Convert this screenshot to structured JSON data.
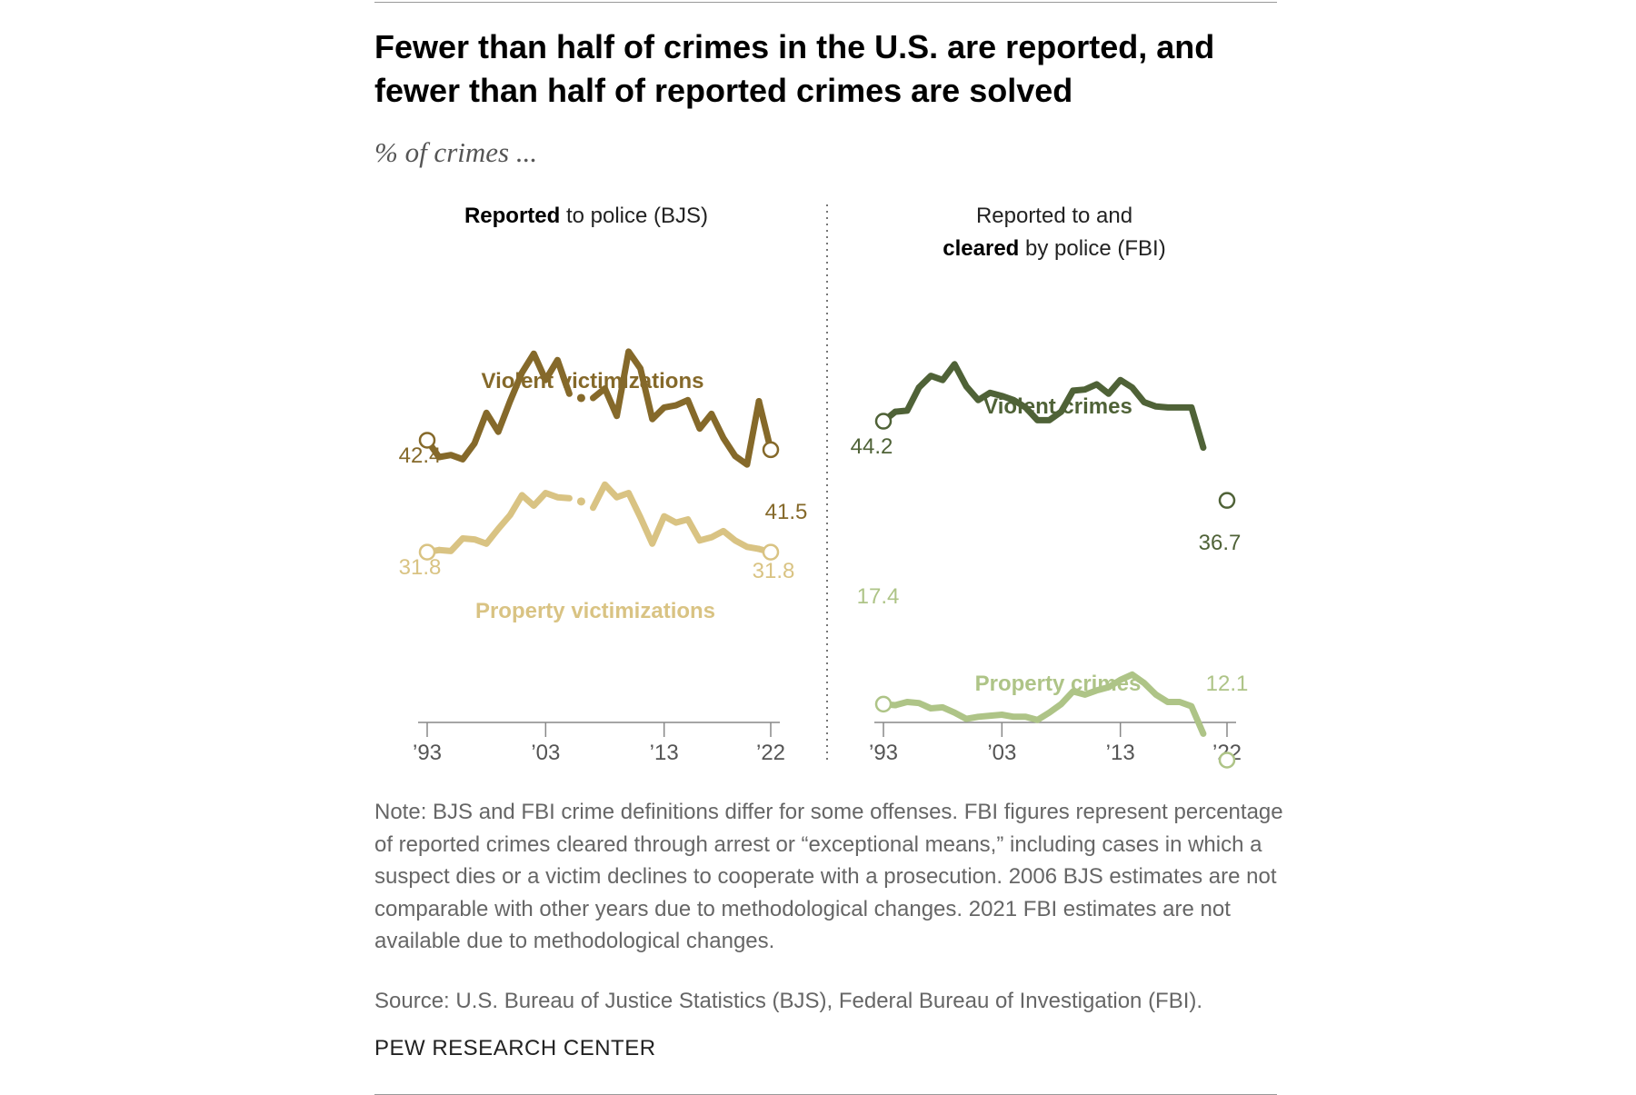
{
  "title": "Fewer than half of crimes in the U.S. are reported, and fewer than half of reported crimes are solved",
  "subtitle": "% of crimes ...",
  "panels": {
    "left": {
      "title_bold": "Reported",
      "title_rest": " to police (BJS)"
    },
    "right": {
      "title_line1": "Reported to and",
      "title_bold": "cleared",
      "title_rest": " by police (FBI)"
    }
  },
  "note": "Note: BJS and FBI crime definitions differ for some offenses. FBI figures represent percentage of reported crimes cleared through arrest or “exceptional means,” including cases in which a suspect dies or a victim declines to cooperate with a prosecution. 2006 BJS estimates are not comparable with other years due to methodological changes. 2021 FBI estimates are not available due to methodological changes.",
  "source": "Source: U.S. Bureau of Justice Statistics (BJS), Federal Bureau of Investigation (FBI).",
  "credit": "PEW RESEARCH CENTER",
  "chart_data": [
    {
      "type": "line",
      "panel": "Reported to police (BJS)",
      "x_ticks": [
        "’93",
        "’03",
        "’13",
        "’22"
      ],
      "xlim": [
        1993,
        2022
      ],
      "ylim": [
        0,
        60
      ],
      "grid": false,
      "series": [
        {
          "name": "Violent victimizations",
          "color": "#85692a",
          "start_label": "42.4",
          "end_label": "41.5",
          "points": [
            [
              1993,
              42.4
            ],
            [
              1994,
              40.8
            ],
            [
              1995,
              41.0
            ],
            [
              1996,
              40.6
            ],
            [
              1997,
              42.1
            ],
            [
              1998,
              45.0
            ],
            [
              1999,
              43.2
            ],
            [
              2000,
              46.1
            ],
            [
              2001,
              48.8
            ],
            [
              2002,
              50.6
            ],
            [
              2003,
              48.1
            ],
            [
              2004,
              50.0
            ],
            [
              2005,
              46.8
            ],
            [
              2006,
              null
            ],
            [
              2007,
              46.4
            ],
            [
              2008,
              47.3
            ],
            [
              2009,
              44.7
            ],
            [
              2010,
              50.8
            ],
            [
              2011,
              49.2
            ],
            [
              2012,
              44.4
            ],
            [
              2013,
              45.5
            ],
            [
              2014,
              45.7
            ],
            [
              2015,
              46.2
            ],
            [
              2016,
              43.5
            ],
            [
              2017,
              44.9
            ],
            [
              2018,
              42.6
            ],
            [
              2019,
              40.9
            ],
            [
              2020,
              40.1
            ],
            [
              2021,
              46.1
            ],
            [
              2022,
              41.5
            ]
          ],
          "isolated_point": [
            2006,
            46.4
          ]
        },
        {
          "name": "Property victimizations",
          "color": "#d9c383",
          "start_label": "31.8",
          "end_label": "31.8",
          "points": [
            [
              1993,
              31.8
            ],
            [
              1994,
              32.0
            ],
            [
              1995,
              31.9
            ],
            [
              1996,
              33.1
            ],
            [
              1997,
              33.0
            ],
            [
              1998,
              32.6
            ],
            [
              1999,
              34.0
            ],
            [
              2000,
              35.3
            ],
            [
              2001,
              37.2
            ],
            [
              2002,
              36.2
            ],
            [
              2003,
              37.4
            ],
            [
              2004,
              37.0
            ],
            [
              2005,
              36.9
            ],
            [
              2006,
              null
            ],
            [
              2007,
              36.0
            ],
            [
              2008,
              38.2
            ],
            [
              2009,
              37.0
            ],
            [
              2010,
              37.4
            ],
            [
              2011,
              35.1
            ],
            [
              2012,
              32.6
            ],
            [
              2013,
              35.2
            ],
            [
              2014,
              34.6
            ],
            [
              2015,
              34.9
            ],
            [
              2016,
              32.9
            ],
            [
              2017,
              33.2
            ],
            [
              2018,
              33.8
            ],
            [
              2019,
              32.9
            ],
            [
              2020,
              32.3
            ],
            [
              2021,
              32.1
            ],
            [
              2022,
              31.8
            ]
          ],
          "isolated_point": [
            2006,
            36.6
          ]
        }
      ]
    },
    {
      "type": "line",
      "panel": "Reported to and cleared by police (FBI)",
      "x_ticks": [
        "’93",
        "’03",
        "’13",
        "’22"
      ],
      "xlim": [
        1993,
        2022
      ],
      "ylim": [
        0,
        60
      ],
      "grid": false,
      "series": [
        {
          "name": "Violent crimes",
          "color": "#4f6237",
          "start_label": "44.2",
          "end_label": "36.7",
          "points": [
            [
              1993,
              44.2
            ],
            [
              1994,
              45.1
            ],
            [
              1995,
              45.2
            ],
            [
              1996,
              47.4
            ],
            [
              1997,
              48.5
            ],
            [
              1998,
              48.1
            ],
            [
              1999,
              49.6
            ],
            [
              2000,
              47.5
            ],
            [
              2001,
              46.2
            ],
            [
              2002,
              46.9
            ],
            [
              2003,
              46.6
            ],
            [
              2004,
              46.2
            ],
            [
              2005,
              45.5
            ],
            [
              2006,
              44.3
            ],
            [
              2007,
              44.3
            ],
            [
              2008,
              45.1
            ],
            [
              2009,
              47.1
            ],
            [
              2010,
              47.2
            ],
            [
              2011,
              47.7
            ],
            [
              2012,
              46.8
            ],
            [
              2013,
              48.1
            ],
            [
              2014,
              47.4
            ],
            [
              2015,
              46.0
            ],
            [
              2016,
              45.6
            ],
            [
              2017,
              45.5
            ],
            [
              2018,
              45.5
            ],
            [
              2019,
              45.5
            ],
            [
              2020,
              41.7
            ],
            [
              2021,
              null
            ],
            [
              2022,
              36.7
            ]
          ]
        },
        {
          "name": "Property crimes",
          "color": "#aec487",
          "start_label": "17.4",
          "end_label": "12.1",
          "points": [
            [
              1993,
              17.4
            ],
            [
              1994,
              17.3
            ],
            [
              1995,
              17.6
            ],
            [
              1996,
              17.5
            ],
            [
              1997,
              17.0
            ],
            [
              1998,
              17.1
            ],
            [
              1999,
              16.6
            ],
            [
              2000,
              16.0
            ],
            [
              2001,
              16.2
            ],
            [
              2002,
              16.3
            ],
            [
              2003,
              16.4
            ],
            [
              2004,
              16.2
            ],
            [
              2005,
              16.2
            ],
            [
              2006,
              15.9
            ],
            [
              2007,
              16.6
            ],
            [
              2008,
              17.4
            ],
            [
              2009,
              18.6
            ],
            [
              2010,
              18.3
            ],
            [
              2011,
              18.7
            ],
            [
              2012,
              19.0
            ],
            [
              2013,
              19.7
            ],
            [
              2014,
              20.2
            ],
            [
              2015,
              19.4
            ],
            [
              2016,
              18.3
            ],
            [
              2017,
              17.6
            ],
            [
              2018,
              17.6
            ],
            [
              2019,
              17.2
            ],
            [
              2020,
              14.6
            ],
            [
              2021,
              null
            ],
            [
              2022,
              12.1
            ]
          ]
        }
      ]
    }
  ]
}
